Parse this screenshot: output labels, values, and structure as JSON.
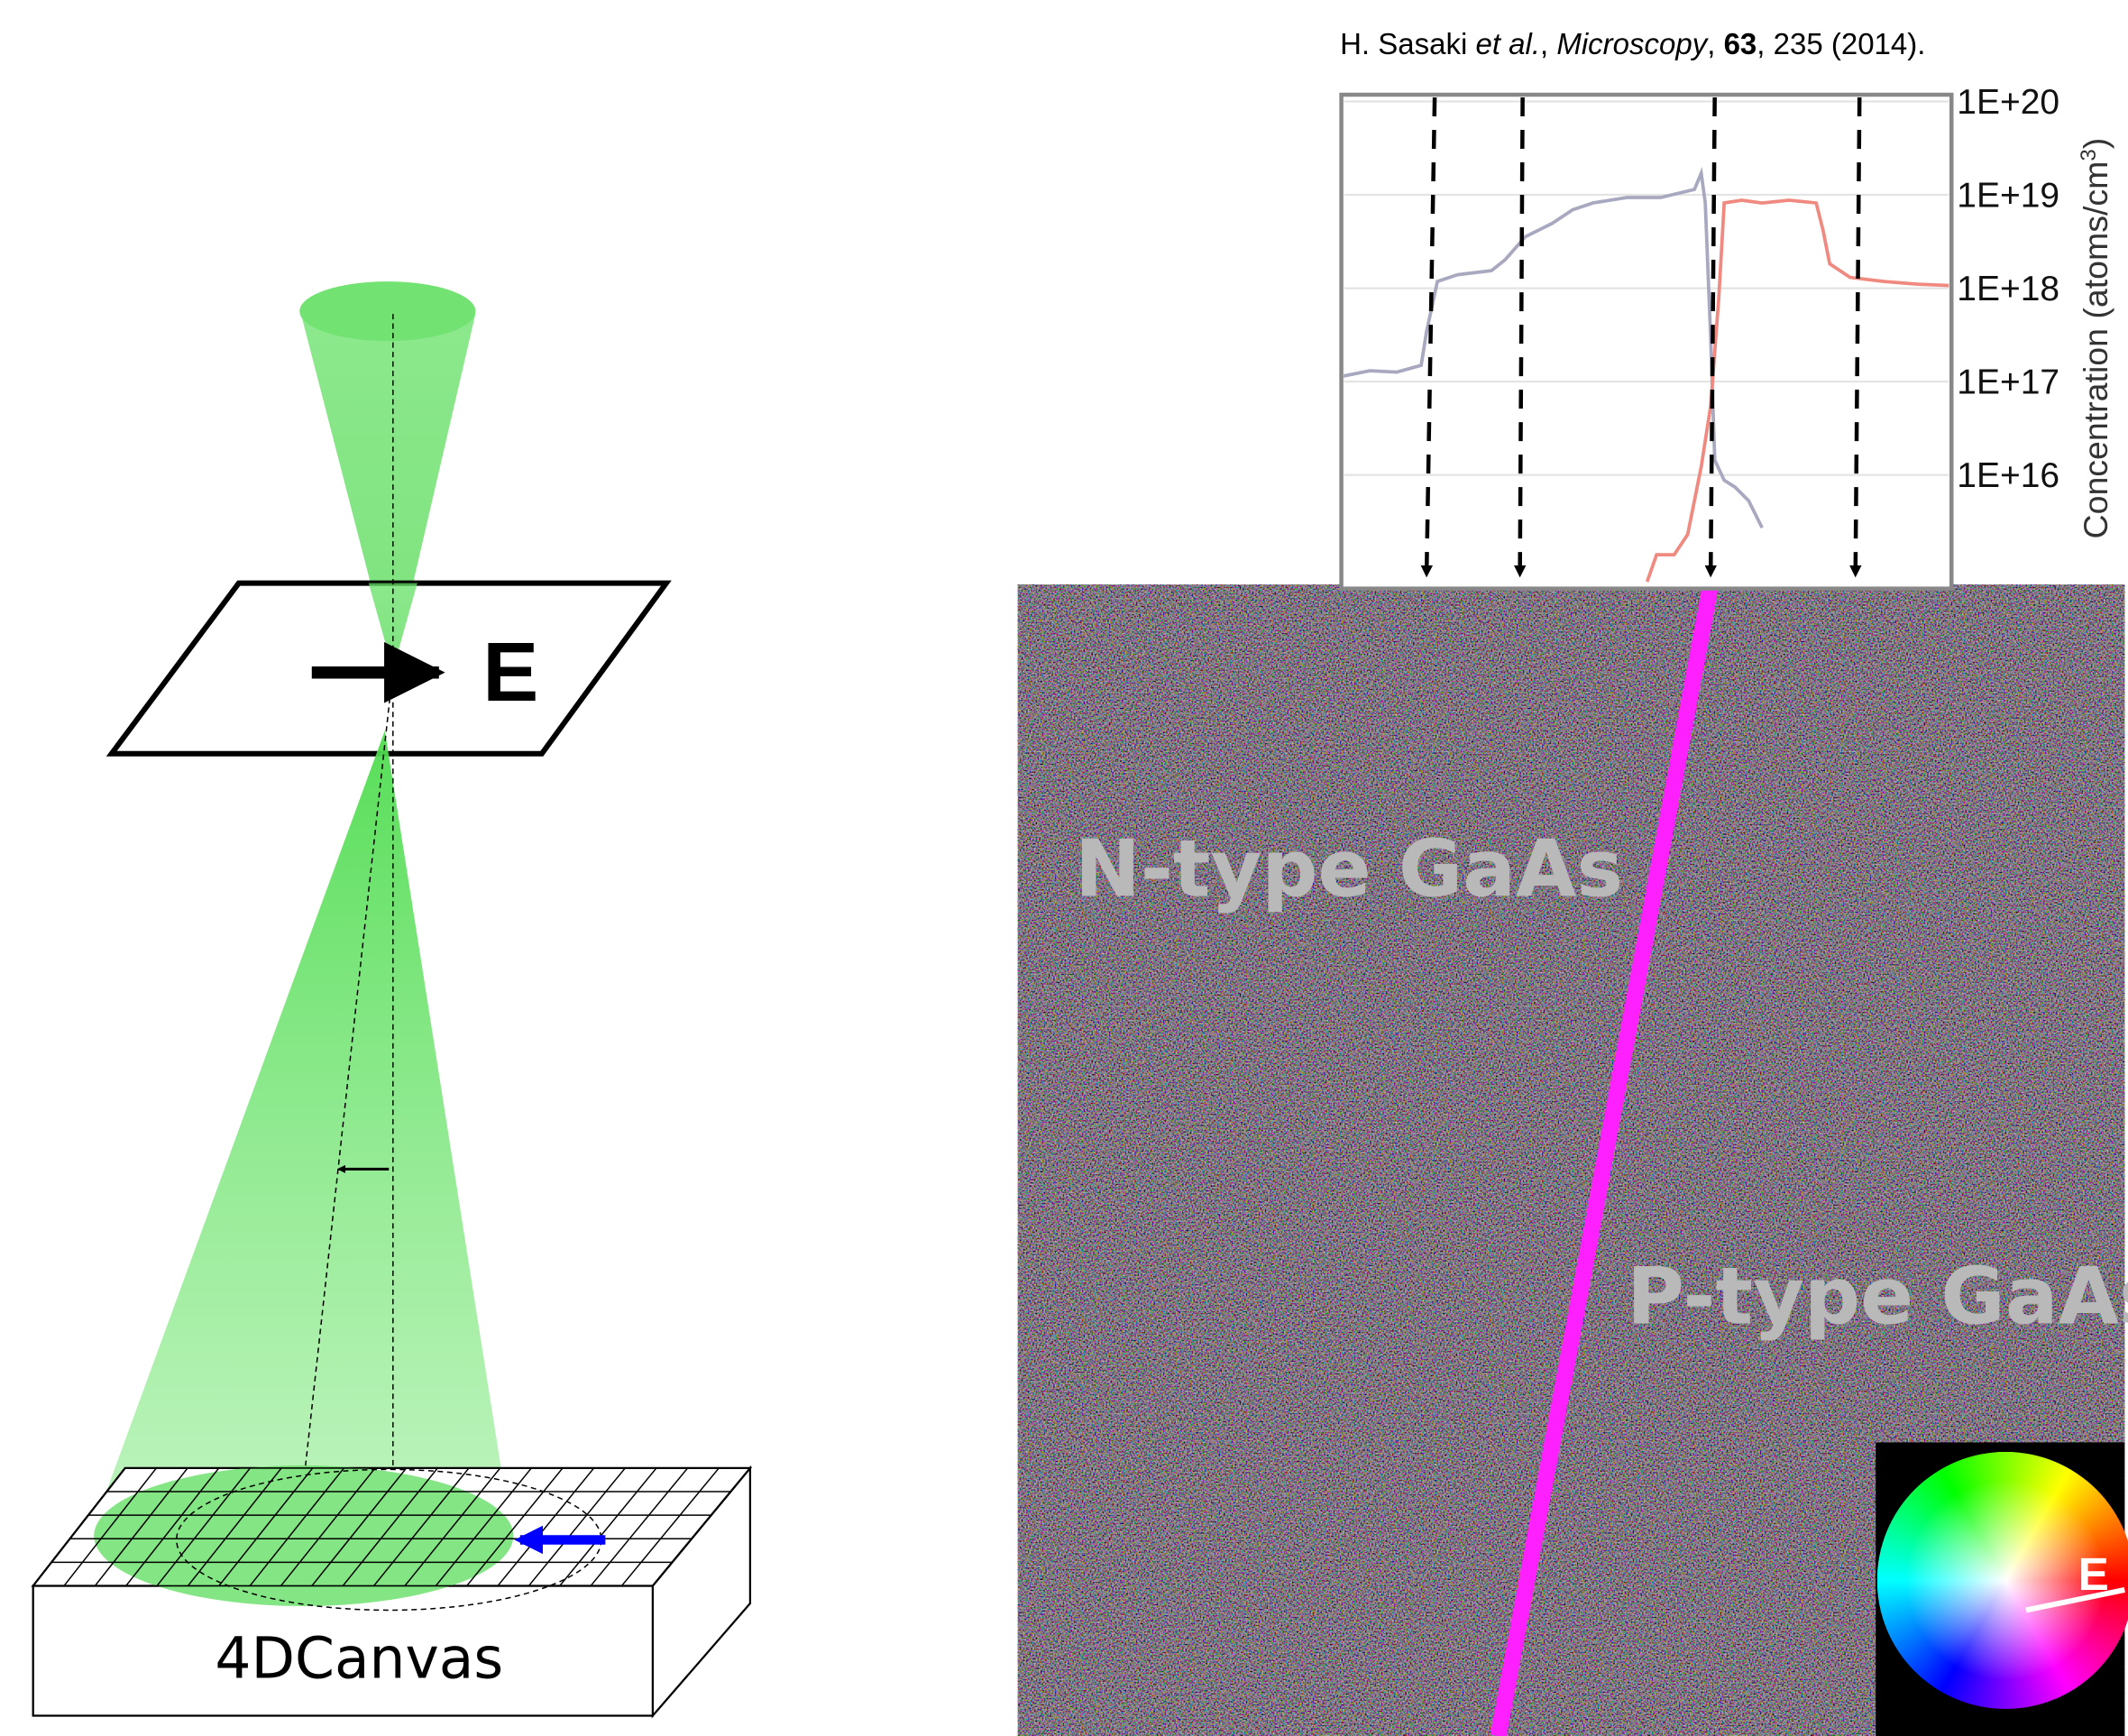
{
  "citation": {
    "parts": [
      "H. Sasaki ",
      "et al.",
      ", ",
      "Microscopy",
      ", ",
      "63",
      ", 235 (2014)."
    ]
  },
  "profile": {
    "yticks": [
      "1E+20",
      "1E+19",
      "1E+18",
      "1E+17",
      "1E+16"
    ],
    "ylabel": {
      "text": "Concentration (atoms/cm",
      "sup": "3",
      "close": ")"
    }
  },
  "schematic": {
    "field_label": "E",
    "detector_label": "4DCanvas"
  },
  "image": {
    "n_label": "N-type GaAs",
    "p_label": "P-type GaAs",
    "wheel_label": "E"
  }
}
